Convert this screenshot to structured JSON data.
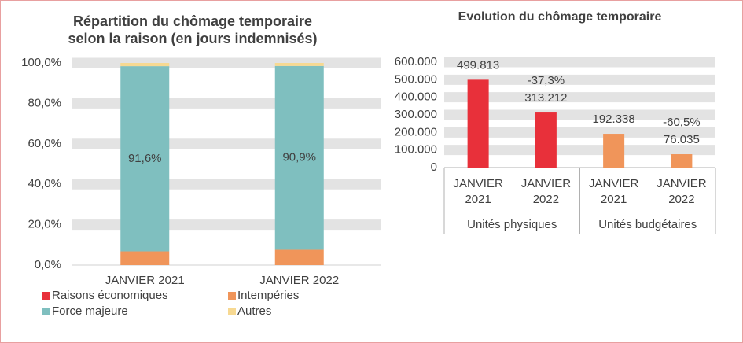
{
  "charts": [
    {
      "chart_data": {
        "type": "stacked_bar",
        "title": [
          "Répartition du chômage temporaire",
          "selon la raison (en jours indemnisés)"
        ],
        "categories": [
          "JANVIER 2021",
          "JANVIER 2022"
        ],
        "series": [
          {
            "name": "Raisons économiques",
            "color": "#e8303a",
            "values": [
              0,
              0
            ]
          },
          {
            "name": "Intempéries",
            "color": "#f0955a",
            "values": [
              6.8,
              7.6
            ]
          },
          {
            "name": "Force majeure",
            "color": "#7fbfbf",
            "values": [
              91.6,
              90.9
            ],
            "value_labels": [
              "91,6%",
              "90,9%"
            ]
          },
          {
            "name": "Autres",
            "color": "#f7d992",
            "values": [
              1.6,
              1.5
            ]
          }
        ],
        "ylim": [
          0,
          100
        ],
        "yticks": [
          {
            "value": 0,
            "label": "0,0%"
          },
          {
            "value": 20,
            "label": "20,0%"
          },
          {
            "value": 40,
            "label": "40,0%"
          },
          {
            "value": 60,
            "label": "60,0%"
          },
          {
            "value": 80,
            "label": "80,0%"
          },
          {
            "value": 100,
            "label": "100,0%"
          }
        ],
        "grid": true
      }
    },
    {
      "chart_data": {
        "type": "grouped_bar",
        "title": "Evolution du chômage temporaire",
        "groups": [
          {
            "name": "Unités physiques",
            "categories": [
              [
                "JANVIER",
                "2021"
              ],
              [
                "JANVIER",
                "2022"
              ]
            ],
            "values": [
              499813,
              313212
            ],
            "value_labels": [
              "499.813",
              "313.212"
            ],
            "color": "#e8303a",
            "change": "-37,3%"
          },
          {
            "name": "Unités budgétaires",
            "categories": [
              [
                "JANVIER",
                "2021"
              ],
              [
                "JANVIER",
                "2022"
              ]
            ],
            "values": [
              192338,
              76035
            ],
            "value_labels": [
              "192.338",
              "76.035"
            ],
            "color": "#f0955a",
            "change": "-60,5%"
          }
        ],
        "ylim": [
          0,
          600000
        ],
        "yticks": [
          0,
          {
            "value": 100000,
            "label": "100.000"
          },
          {
            "value": 200000,
            "label": "200.000"
          },
          {
            "value": 300000,
            "label": "300.000"
          },
          {
            "value": 400000,
            "label": "400.000"
          },
          {
            "value": 500000,
            "label": "500.000"
          },
          {
            "value": 600000,
            "label": "600.000"
          }
        ],
        "grid": true
      }
    }
  ]
}
